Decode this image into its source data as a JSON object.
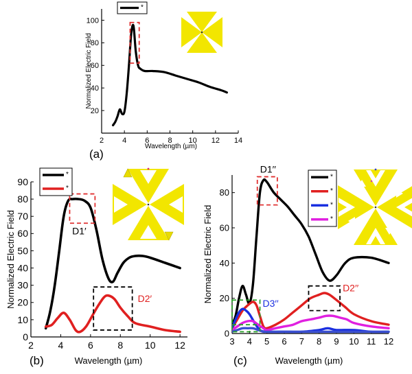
{
  "panels": [
    {
      "id": "a",
      "panel_label": "(a)",
      "chart_data": {
        "type": "line",
        "xlabel": "Wavelength (µm)",
        "ylabel": "Normalized Electric Field",
        "xlim": [
          2,
          14
        ],
        "ylim": [
          0,
          110
        ],
        "xticks": [
          "2",
          "4",
          "6",
          "8",
          "10",
          "12",
          "14"
        ],
        "yticks": [
          "20",
          "40",
          "60",
          "80",
          "100"
        ],
        "grid": false,
        "legend_position": "top-left",
        "series": [
          {
            "name": "*",
            "color": "#000000",
            "x": [
              3.0,
              3.2,
              3.4,
              3.6,
              3.8,
              4.0,
              4.2,
              4.4,
              4.6,
              4.8,
              5.0,
              5.2,
              5.4,
              5.8,
              6.5,
              7.5,
              8.5,
              9.5,
              10.5,
              11.5,
              12.5,
              13.0
            ],
            "y": [
              7,
              10,
              15,
              21,
              17,
              19,
              35,
              60,
              88,
              95,
              72,
              60,
              57,
              55,
              55,
              54,
              51,
              48,
              45,
              41,
              38,
              36
            ]
          }
        ],
        "annotations": [
          {
            "type": "dashed-box",
            "color": "#e03030",
            "x": [
              4.5,
              5.3
            ],
            "y": [
              62,
              98
            ]
          }
        ]
      }
    },
    {
      "id": "b",
      "panel_label": "(b)",
      "chart_data": {
        "type": "line",
        "xlabel": "Wavelength (µm)",
        "ylabel": "Normalized Electric Field",
        "xlim": [
          2,
          12.5
        ],
        "ylim": [
          0,
          90
        ],
        "xticks": [
          "2",
          "4",
          "6",
          "8",
          "10",
          "12"
        ],
        "yticks": [
          "0",
          "10",
          "20",
          "30",
          "40",
          "50",
          "60",
          "70",
          "80",
          "90"
        ],
        "grid": false,
        "legend_position": "top-left",
        "series": [
          {
            "name": "*",
            "color": "#000000",
            "x": [
              3.0,
              3.3,
              3.6,
              3.9,
              4.2,
              4.5,
              4.8,
              5.2,
              5.6,
              6.0,
              6.4,
              6.8,
              7.2,
              7.5,
              7.8,
              8.2,
              8.6,
              9.0,
              9.5,
              10.0,
              11.0,
              12.0
            ],
            "y": [
              5,
              15,
              30,
              50,
              70,
              79,
              80,
              80,
              79,
              75,
              62,
              45,
              34,
              32,
              37,
              43,
              46,
              47,
              47,
              46,
              43,
              40
            ]
          },
          {
            "name": "*",
            "color": "#e02020",
            "x": [
              3.0,
              3.4,
              3.8,
              4.2,
              4.6,
              5.0,
              5.3,
              5.7,
              6.1,
              6.5,
              6.9,
              7.2,
              7.6,
              8.0,
              8.5,
              9.0,
              10.0,
              11.0,
              12.0
            ],
            "y": [
              6,
              7,
              11,
              14,
              10,
              4,
              3,
              6,
              12,
              18,
              23,
              24,
              22,
              17,
              12,
              8,
              6,
              4,
              3
            ]
          }
        ],
        "annotations": [
          {
            "type": "dashed-box",
            "color": "#e03030",
            "x": [
              4.6,
              6.3
            ],
            "y": [
              66,
              83
            ],
            "label": "D1′",
            "label_color": "#000000"
          },
          {
            "type": "dashed-box",
            "color": "#000000",
            "x": [
              6.2,
              8.8
            ],
            "y": [
              4,
              29
            ],
            "label": "D2′",
            "label_color": "#e02020"
          }
        ]
      }
    },
    {
      "id": "c",
      "panel_label": "(c)",
      "chart_data": {
        "type": "line",
        "xlabel": "Wavelength (µm)",
        "ylabel": "Normalized Electric Field",
        "xlim": [
          3,
          12
        ],
        "ylim": [
          0,
          90
        ],
        "xticks": [
          "3",
          "4",
          "5",
          "6",
          "7",
          "8",
          "9",
          "10",
          "11",
          "12"
        ],
        "yticks": [
          "0",
          "20",
          "40",
          "60",
          "80"
        ],
        "grid": false,
        "legend_position": "top-right",
        "series": [
          {
            "name": "*",
            "color": "#000000",
            "x": [
              3.0,
              3.2,
              3.4,
              3.6,
              3.8,
              4.0,
              4.2,
              4.4,
              4.6,
              4.8,
              5.0,
              5.4,
              5.8,
              6.2,
              6.6,
              7.0,
              7.4,
              7.8,
              8.2,
              8.6,
              9.0,
              9.5,
              10.0,
              11.0,
              12.0
            ],
            "y": [
              5,
              10,
              20,
              27,
              22,
              17,
              28,
              55,
              80,
              87,
              86,
              80,
              76,
              72,
              67,
              62,
              55,
              45,
              35,
              30,
              33,
              40,
              43,
              43,
              40
            ]
          },
          {
            "name": "*",
            "color": "#e02020",
            "x": [
              3.0,
              3.3,
              3.6,
              3.9,
              4.2,
              4.4,
              4.6,
              4.8,
              5.0,
              5.5,
              6.0,
              6.5,
              7.0,
              7.5,
              8.0,
              8.3,
              8.6,
              9.0,
              9.5,
              10.0,
              11.0,
              12.0
            ],
            "y": [
              3,
              8,
              13,
              16,
              18,
              16,
              10,
              4,
              3,
              5,
              8,
              12,
              16,
              20,
              22,
              23,
              22,
              19,
              15,
              11,
              7,
              5
            ]
          },
          {
            "name": "*",
            "color": "#1a2fe0",
            "x": [
              3.0,
              3.2,
              3.4,
              3.6,
              3.8,
              4.0,
              4.3,
              4.6,
              5.0,
              6.0,
              7.0,
              8.0,
              8.5,
              9.0,
              10.0,
              11.0,
              12.0
            ],
            "y": [
              3,
              8,
              12,
              14,
              13,
              11,
              6,
              2,
              1,
              1,
              1,
              2,
              3,
              2,
              2,
              1,
              1
            ]
          },
          {
            "name": "*",
            "color": "#e020e0",
            "x": [
              3.0,
              3.3,
              3.6,
              3.9,
              4.2,
              4.5,
              4.8,
              5.0,
              5.5,
              6.0,
              6.5,
              7.0,
              7.5,
              8.0,
              8.4,
              8.8,
              9.2,
              9.6,
              10.0,
              11.0,
              12.0
            ],
            "y": [
              2,
              4,
              6,
              7,
              7,
              5,
              3,
              2,
              3,
              4,
              5,
              7,
              8,
              9,
              10,
              10,
              9,
              8,
              6,
              4,
              3
            ]
          },
          {
            "name": "",
            "color": "#3a4fd0",
            "x": [
              3.0,
              3.3,
              3.6,
              3.9,
              4.2,
              4.5,
              4.8,
              5.0,
              6.0,
              7.0,
              8.0,
              9.0,
              10.0,
              11.0,
              12.0
            ],
            "y": [
              1,
              2,
              3,
              3,
              3,
              2,
              1,
              1,
              1,
              1,
              1,
              1,
              1,
              1,
              1
            ]
          }
        ],
        "annotations": [
          {
            "type": "dashed-box",
            "color": "#e03030",
            "x": [
              4.45,
              5.6
            ],
            "y": [
              73,
              89
            ],
            "label": "D1′′",
            "label_color": "#000000"
          },
          {
            "type": "dashed-box",
            "color": "#000000",
            "x": [
              7.4,
              9.2
            ],
            "y": [
              13,
              27
            ],
            "label": "D2′′",
            "label_color": "#e02020"
          },
          {
            "type": "dashed-box",
            "color": "#2aa02a",
            "x": [
              3.0,
              4.6
            ],
            "y": [
              1,
              19
            ],
            "label": "D3′′",
            "label_color": "#1a2fe0"
          },
          {
            "type": "dashed-hline",
            "color": "#2aa02a",
            "x": [
              3.0,
              4.6
            ],
            "y": 5
          }
        ]
      }
    }
  ]
}
